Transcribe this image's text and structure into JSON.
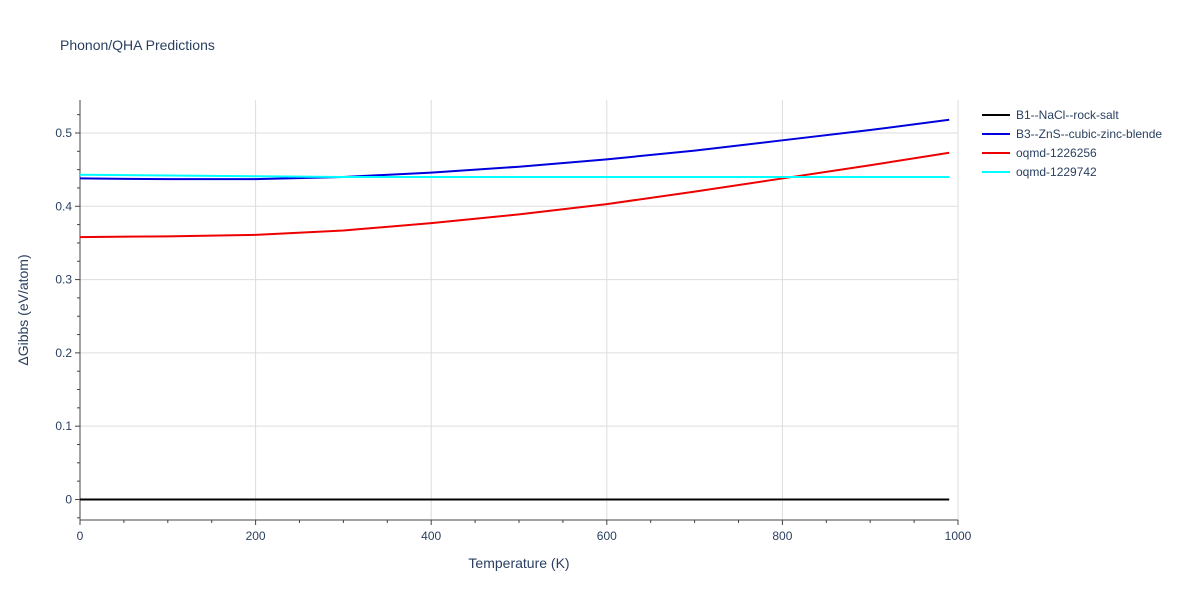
{
  "chart_data": {
    "type": "line",
    "title": "Phonon/QHA Predictions",
    "xlabel": "Temperature (K)",
    "ylabel": "ΔGibbs (eV/atom)",
    "xlim": [
      0,
      1000
    ],
    "ylim": [
      -0.028,
      0.545
    ],
    "xticks": [
      0,
      200,
      400,
      600,
      800,
      1000
    ],
    "xtick_labels": [
      "0",
      "200",
      "400",
      "600",
      "800",
      "1000"
    ],
    "yticks": [
      0,
      0.1,
      0.2,
      0.3,
      0.4,
      0.5
    ],
    "ytick_labels": [
      "0",
      "0.1",
      "0.2",
      "0.3",
      "0.4",
      "0.5"
    ],
    "grid": true,
    "legend_position": "right",
    "series": [
      {
        "name": "B1--NaCl--rock-salt",
        "color": "#000000",
        "x": [
          0,
          100,
          200,
          300,
          400,
          500,
          600,
          700,
          800,
          900,
          990
        ],
        "y": [
          0,
          0,
          0,
          0,
          0,
          0,
          0,
          0,
          0,
          0,
          0
        ]
      },
      {
        "name": "B3--ZnS--cubic-zinc-blende",
        "color": "#0000dd",
        "x": [
          0,
          100,
          200,
          300,
          400,
          500,
          600,
          700,
          800,
          900,
          990
        ],
        "y": [
          0.438,
          0.437,
          0.437,
          0.44,
          0.446,
          0.454,
          0.464,
          0.476,
          0.49,
          0.504,
          0.518
        ]
      },
      {
        "name": "oqmd-1226256",
        "color": "#ee0000",
        "x": [
          0,
          100,
          200,
          300,
          400,
          500,
          600,
          700,
          800,
          900,
          990
        ],
        "y": [
          0.358,
          0.359,
          0.361,
          0.367,
          0.377,
          0.389,
          0.403,
          0.42,
          0.438,
          0.456,
          0.473
        ]
      },
      {
        "name": "oqmd-1229742",
        "color": "#00ffff",
        "x": [
          0,
          100,
          200,
          300,
          400,
          500,
          600,
          700,
          800,
          900,
          990
        ],
        "y": [
          0.443,
          0.442,
          0.441,
          0.44,
          0.44,
          0.44,
          0.44,
          0.44,
          0.44,
          0.44,
          0.44
        ]
      }
    ]
  }
}
